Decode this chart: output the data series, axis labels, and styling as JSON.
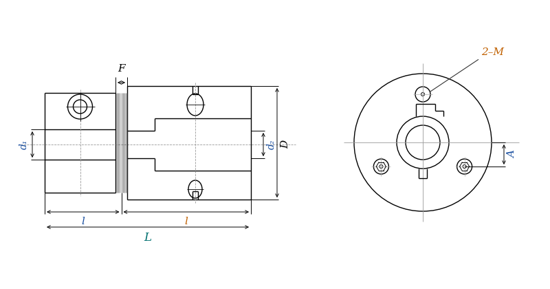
{
  "bg_color": "#ffffff",
  "line_color": "#000000",
  "dim_color": "#000000",
  "label_blue": "#1a4fa0",
  "label_orange": "#c06000",
  "label_teal": "#007070",
  "lw": 1.0,
  "lw_thin": 0.6,
  "lw_dim": 0.7,
  "labels": {
    "F": "F",
    "d1": "d₁",
    "d2": "d₂",
    "D": "D",
    "l": "l",
    "L": "L",
    "A": "A",
    "M": "2–M"
  }
}
